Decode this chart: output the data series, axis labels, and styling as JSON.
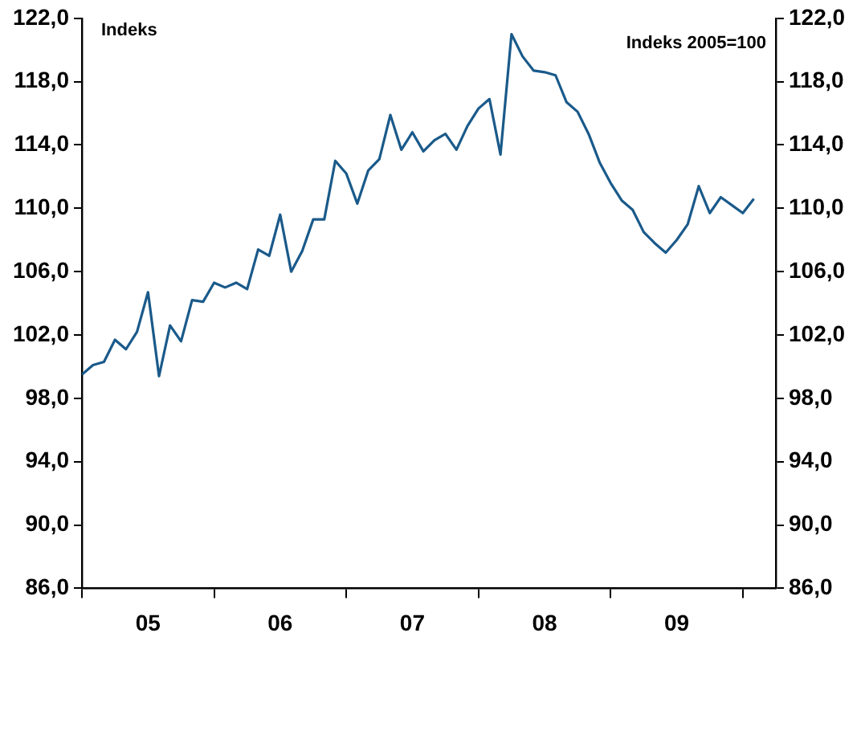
{
  "chart_data": {
    "type": "line",
    "ylabel": "Indeks",
    "annotations": [
      "Indeks 2005=100"
    ],
    "x": [
      "2005-01",
      "2005-02",
      "2005-03",
      "2005-04",
      "2005-05",
      "2005-06",
      "2005-07",
      "2005-08",
      "2005-09",
      "2005-10",
      "2005-11",
      "2005-12",
      "2006-01",
      "2006-02",
      "2006-03",
      "2006-04",
      "2006-05",
      "2006-06",
      "2006-07",
      "2006-08",
      "2006-09",
      "2006-10",
      "2006-11",
      "2006-12",
      "2007-01",
      "2007-02",
      "2007-03",
      "2007-04",
      "2007-05",
      "2007-06",
      "2007-07",
      "2007-08",
      "2007-09",
      "2007-10",
      "2007-11",
      "2007-12",
      "2008-01",
      "2008-02",
      "2008-03",
      "2008-04",
      "2008-05",
      "2008-06",
      "2008-07",
      "2008-08",
      "2008-09",
      "2008-10",
      "2008-11",
      "2008-12",
      "2009-01",
      "2009-02",
      "2009-03",
      "2009-04",
      "2009-05",
      "2009-06",
      "2009-07",
      "2009-08",
      "2009-09",
      "2009-10",
      "2009-11",
      "2009-12",
      "2010-01",
      "2010-02"
    ],
    "series": [
      {
        "color": "#1a5a8a",
        "values": [
          99.5,
          100.1,
          100.3,
          101.7,
          101.1,
          102.2,
          104.7,
          99.4,
          102.6,
          101.6,
          104.2,
          104.1,
          105.3,
          105.0,
          105.3,
          104.9,
          107.4,
          107.0,
          109.6,
          106.0,
          107.3,
          109.3,
          109.3,
          113.0,
          112.2,
          110.3,
          112.4,
          113.1,
          115.9,
          113.7,
          114.8,
          113.6,
          114.3,
          114.7,
          113.7,
          115.2,
          116.3,
          116.9,
          113.4,
          121.0,
          119.6,
          118.7,
          118.6,
          118.4,
          116.7,
          116.1,
          114.7,
          112.9,
          111.6,
          110.5,
          109.9,
          108.5,
          107.8,
          107.2,
          108.0,
          109.0,
          111.4,
          109.7,
          110.7,
          110.2,
          109.7,
          110.6
        ]
      }
    ],
    "xlim": [
      "2005-01",
      "2010-04"
    ],
    "xticks": [
      {
        "value": "2005-01",
        "label": null
      },
      {
        "value": "2005-07",
        "label": "05"
      },
      {
        "value": "2006-01",
        "label": null
      },
      {
        "value": "2006-07",
        "label": "06"
      },
      {
        "value": "2007-01",
        "label": null
      },
      {
        "value": "2007-07",
        "label": "07"
      },
      {
        "value": "2008-01",
        "label": null
      },
      {
        "value": "2008-07",
        "label": "08"
      },
      {
        "value": "2009-01",
        "label": null
      },
      {
        "value": "2009-07",
        "label": "09"
      },
      {
        "value": "2010-01",
        "label": null
      }
    ],
    "ylim": [
      86,
      122
    ],
    "yticks": [
      {
        "value": 86,
        "label": "86,0"
      },
      {
        "value": 90,
        "label": "90,0"
      },
      {
        "value": 94,
        "label": "94,0"
      },
      {
        "value": 98,
        "label": "98,0"
      },
      {
        "value": 102,
        "label": "102,0"
      },
      {
        "value": 106,
        "label": "106,0"
      },
      {
        "value": 110,
        "label": "110,0"
      },
      {
        "value": 114,
        "label": "114,0"
      },
      {
        "value": 118,
        "label": "118,0"
      },
      {
        "value": 122,
        "label": "122,0"
      }
    ],
    "y2lim": [
      86,
      122
    ],
    "y2ticks": [
      {
        "value": 86,
        "label": "86,0"
      },
      {
        "value": 90,
        "label": "90,0"
      },
      {
        "value": 94,
        "label": "94,0"
      },
      {
        "value": 98,
        "label": "98,0"
      },
      {
        "value": 102,
        "label": "102,0"
      },
      {
        "value": 106,
        "label": "106,0"
      },
      {
        "value": 110,
        "label": "110,0"
      },
      {
        "value": 114,
        "label": "114,0"
      },
      {
        "value": 118,
        "label": "118,0"
      },
      {
        "value": 122,
        "label": "122,0"
      }
    ],
    "grid": false,
    "legend": false,
    "marker": "none",
    "line_style": "solid"
  }
}
